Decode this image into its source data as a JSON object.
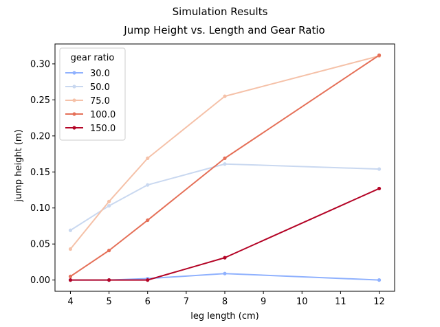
{
  "chart_data": {
    "type": "line",
    "suptitle": "Simulation Results",
    "title": "Jump Height vs. Length and Gear Ratio",
    "xlabel": "leg length (cm)",
    "ylabel": "jump height (m)",
    "xlim": [
      3.6,
      12.4
    ],
    "ylim": [
      -0.0156,
      0.3276
    ],
    "xticks": [
      4,
      5,
      6,
      7,
      8,
      9,
      10,
      11,
      12
    ],
    "xtick_labels": [
      "4",
      "5",
      "6",
      "7",
      "8",
      "9",
      "10",
      "11",
      "12"
    ],
    "yticks": [
      0.0,
      0.05,
      0.1,
      0.15,
      0.2,
      0.25,
      0.3
    ],
    "ytick_labels": [
      "0.00",
      "0.05",
      "0.10",
      "0.15",
      "0.20",
      "0.25",
      "0.30"
    ],
    "grid": false,
    "legend": {
      "title": "gear ratio",
      "placement": "upper-left"
    },
    "x": [
      4,
      5,
      6,
      8,
      12
    ],
    "series": [
      {
        "name": "30.0",
        "color": "#8fb1fe",
        "values": [
          0.0,
          0.0,
          0.002,
          0.009,
          0.0
        ]
      },
      {
        "name": "50.0",
        "color": "#c9d8f0",
        "values": [
          0.069,
          0.103,
          0.132,
          0.161,
          0.154
        ]
      },
      {
        "name": "75.0",
        "color": "#f5c1a8",
        "values": [
          0.043,
          0.109,
          0.169,
          0.255,
          0.311
        ]
      },
      {
        "name": "100.0",
        "color": "#e57058",
        "values": [
          0.005,
          0.041,
          0.083,
          0.169,
          0.312
        ]
      },
      {
        "name": "150.0",
        "color": "#b40426",
        "values": [
          0.0,
          0.0,
          0.0,
          0.031,
          0.127
        ]
      }
    ]
  }
}
